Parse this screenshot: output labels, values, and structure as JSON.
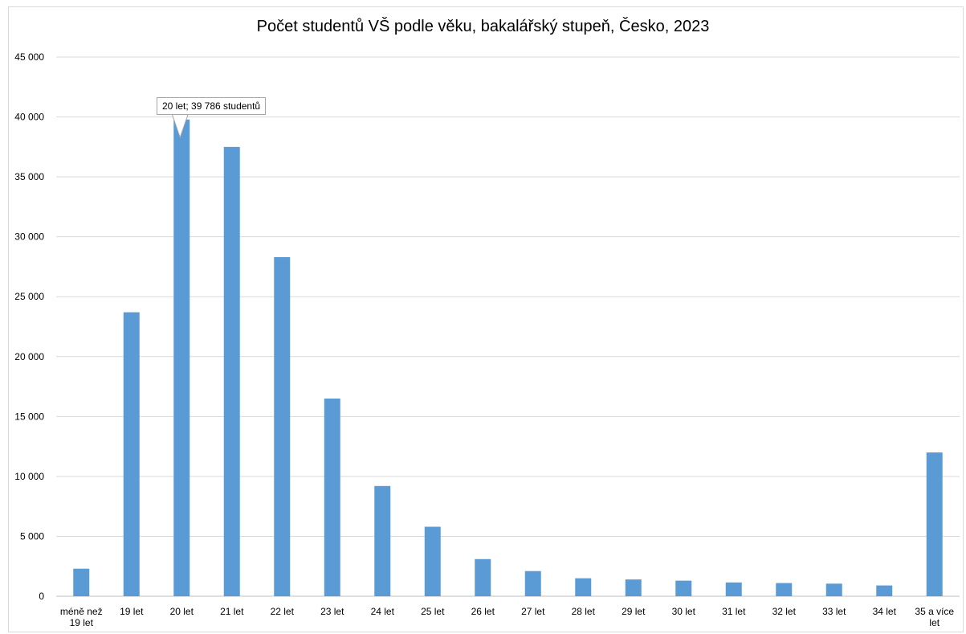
{
  "chart_data": {
    "type": "bar",
    "title": "Počet studentů VŠ podle věku, bakalářský stupeň, Česko, 2023",
    "categories": [
      "méně než 19 let",
      "19 let",
      "20 let",
      "21 let",
      "22 let",
      "23 let",
      "24 let",
      "25 let",
      "26 let",
      "27 let",
      "28 let",
      "29 let",
      "30 let",
      "31 let",
      "32 let",
      "33 let",
      "34 let",
      "35 a více let"
    ],
    "category_lines": [
      [
        "méně než",
        "19 let"
      ],
      [
        "19 let"
      ],
      [
        "20 let"
      ],
      [
        "21 let"
      ],
      [
        "22 let"
      ],
      [
        "23 let"
      ],
      [
        "24 let"
      ],
      [
        "25 let"
      ],
      [
        "26 let"
      ],
      [
        "27 let"
      ],
      [
        "28 let"
      ],
      [
        "29 let"
      ],
      [
        "30 let"
      ],
      [
        "31 let"
      ],
      [
        "32 let"
      ],
      [
        "33 let"
      ],
      [
        "34 let"
      ],
      [
        "35 a více",
        "let"
      ]
    ],
    "values": [
      2300,
      23700,
      39786,
      37500,
      28300,
      16500,
      9200,
      5800,
      3100,
      2100,
      1500,
      1400,
      1300,
      1150,
      1100,
      1050,
      900,
      12000
    ],
    "ylim": [
      0,
      45000
    ],
    "yticks": [
      0,
      5000,
      10000,
      15000,
      20000,
      25000,
      30000,
      35000,
      40000,
      45000
    ],
    "ytick_labels": [
      "0",
      "5 000",
      "10 000",
      "15 000",
      "20 000",
      "25 000",
      "30 000",
      "35 000",
      "40 000",
      "45 000"
    ],
    "grid": true,
    "bar_color": "#5b9bd5",
    "gridline_color": "#d9d9d9",
    "xlabel": "",
    "ylabel": "",
    "annotation": {
      "category": "20 let",
      "text": "20 let; 39 786 studentů"
    }
  }
}
